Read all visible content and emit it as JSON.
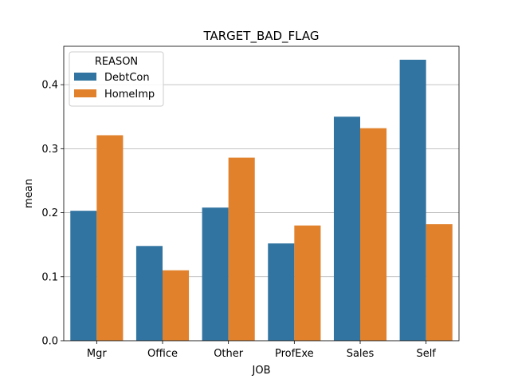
{
  "chart_data": {
    "type": "bar",
    "title": "TARGET_BAD_FLAG",
    "xlabel": "JOB",
    "ylabel": "mean",
    "categories": [
      "Mgr",
      "Office",
      "Other",
      "ProfExe",
      "Sales",
      "Self"
    ],
    "series": [
      {
        "name": "DebtCon",
        "color": "#3274a1",
        "values": [
          0.203,
          0.148,
          0.208,
          0.152,
          0.35,
          0.439
        ]
      },
      {
        "name": "HomeImp",
        "color": "#e1812c",
        "values": [
          0.321,
          0.11,
          0.286,
          0.18,
          0.332,
          0.182
        ]
      }
    ],
    "ylim": [
      0,
      0.46
    ],
    "yticks": [
      0.0,
      0.1,
      0.2,
      0.3,
      0.4
    ],
    "ytick_labels": [
      "0.0",
      "0.1",
      "0.2",
      "0.3",
      "0.4"
    ],
    "grid": "y",
    "legend": {
      "title": "REASON",
      "placement": "top-left"
    }
  }
}
